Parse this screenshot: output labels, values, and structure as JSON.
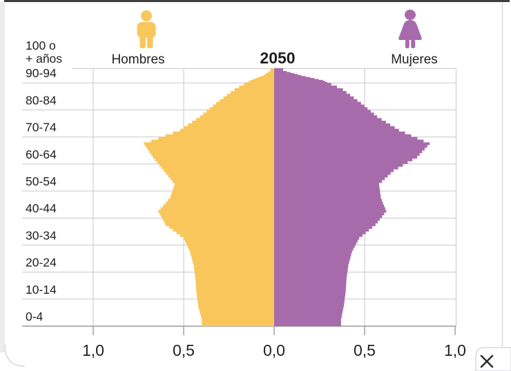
{
  "header": {
    "year": "2050",
    "left_series_label": "Hombres",
    "right_series_label": "Mujeres"
  },
  "colors": {
    "male": "#F9C65B",
    "female": "#A76BAB",
    "grid": "#c7c7cb",
    "axis": "#9a9a9e",
    "text": "#1f1f1f",
    "chrome_border": "#d9d9de",
    "top_bar": "#3e3e3e",
    "left_strip": "#ececef",
    "close_x": "#2b2b2b"
  },
  "y_axis": {
    "decade_labels": [
      "0-4",
      "10-14",
      "20-24",
      "30-34",
      "40-44",
      "50-54",
      "60-64",
      "70-74",
      "80-84",
      "90-94"
    ],
    "top_label_line1": "100 o",
    "top_label_line2": "+ años"
  },
  "x_axis": {
    "tick_labels": [
      "1,0",
      "0,5",
      "0,0",
      "0,5",
      "1,0"
    ],
    "tick_values": [
      -1.0,
      -0.5,
      0.0,
      0.5,
      1.0
    ]
  },
  "close_button": {
    "glyph": "×"
  },
  "chart_data": {
    "type": "bar",
    "subtype": "population-pyramid",
    "title": "2050",
    "orientation": "horizontal-mirrored",
    "grid": true,
    "x_range_each_side": [
      0,
      1.0
    ],
    "x_tick_step": 0.5,
    "age_groups": [
      "0-4",
      "5-9",
      "10-14",
      "15-19",
      "20-24",
      "25-29",
      "30-34",
      "35-39",
      "40-44",
      "45-49",
      "50-54",
      "55-59",
      "60-64",
      "65-69",
      "70-74",
      "75-79",
      "80-84",
      "85-89",
      "90-94",
      "95-99",
      "100 o + años"
    ],
    "series": [
      {
        "name": "Hombres",
        "side": "left",
        "color": "#F9C65B",
        "values": [
          0.4,
          0.42,
          0.43,
          0.435,
          0.445,
          0.465,
          0.5,
          0.6,
          0.64,
          0.575,
          0.55,
          0.61,
          0.67,
          0.72,
          0.52,
          0.41,
          0.32,
          0.22,
          0.13,
          0.06,
          0.02
        ]
      },
      {
        "name": "Mujeres",
        "side": "right",
        "color": "#A76BAB",
        "values": [
          0.37,
          0.385,
          0.395,
          0.4,
          0.41,
          0.43,
          0.47,
          0.56,
          0.62,
          0.59,
          0.58,
          0.66,
          0.79,
          0.86,
          0.69,
          0.57,
          0.48,
          0.38,
          0.27,
          0.15,
          0.05
        ]
      }
    ]
  }
}
